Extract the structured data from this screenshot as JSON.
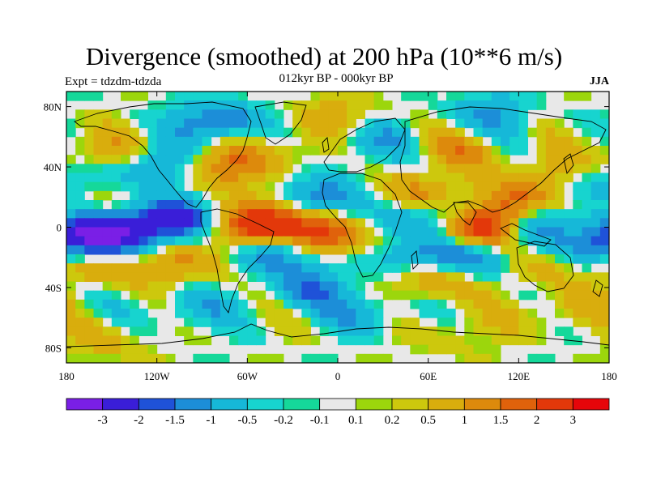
{
  "title": "Divergence (smoothed) at 200 hPa (10**6 m/s)",
  "subtitle": "012kyr BP - 000kyr BP",
  "left_label": "Expt = tdzdm-tdzda",
  "right_label": "JJA",
  "map": {
    "projection": "cylindrical-equidistant",
    "lon_range": [
      -180,
      180
    ],
    "lat_range": [
      -90,
      90
    ],
    "lat_ticks": [
      {
        "label": "80N",
        "lat": 80
      },
      {
        "label": "40N",
        "lat": 40
      },
      {
        "label": "0",
        "lat": 0
      },
      {
        "label": "40S",
        "lat": -40
      },
      {
        "label": "80S",
        "lat": -80
      }
    ],
    "lon_ticks": [
      {
        "label": "180",
        "lon": -180
      },
      {
        "label": "120W",
        "lon": -120
      },
      {
        "label": "60W",
        "lon": -60
      },
      {
        "label": "0",
        "lon": 0
      },
      {
        "label": "60E",
        "lon": 60
      },
      {
        "label": "120E",
        "lon": 120
      },
      {
        "label": "180",
        "lon": 180
      }
    ]
  },
  "colorbar": {
    "colors": [
      "#7a1fe6",
      "#3a1ed8",
      "#1f52d8",
      "#1c8ed8",
      "#16b8d8",
      "#17d4cf",
      "#15d89a",
      "#e8e8e8",
      "#9cd60c",
      "#cdc80d",
      "#d9ad0d",
      "#dd8a0c",
      "#e0620b",
      "#e3380a",
      "#e6050a"
    ],
    "labels": [
      "-3",
      "-2",
      "-1.5",
      "-1",
      "-0.5",
      "-0.2",
      "-0.1",
      "0.1",
      "0.2",
      "0.5",
      "1",
      "1.5",
      "2",
      "3"
    ]
  },
  "field_anomalies": [
    {
      "lon": -170,
      "lat": -5,
      "v": -2.2
    },
    {
      "lon": -140,
      "lat": -2,
      "v": -2.4
    },
    {
      "lon": -110,
      "lat": 5,
      "v": -2.0
    },
    {
      "lon": -100,
      "lat": -25,
      "v": 1.0
    },
    {
      "lon": -160,
      "lat": -25,
      "v": 1.2
    },
    {
      "lon": -165,
      "lat": 10,
      "v": 0.8
    },
    {
      "lon": -70,
      "lat": -5,
      "v": 1.2
    },
    {
      "lon": -40,
      "lat": 5,
      "v": 2.3
    },
    {
      "lon": -10,
      "lat": -5,
      "v": 2.8
    },
    {
      "lon": -40,
      "lat": -15,
      "v": -2.0
    },
    {
      "lon": -10,
      "lat": 20,
      "v": -1.5
    },
    {
      "lon": 20,
      "lat": 5,
      "v": -1.2
    },
    {
      "lon": 50,
      "lat": 20,
      "v": 1.5
    },
    {
      "lon": 80,
      "lat": 10,
      "v": -1.6
    },
    {
      "lon": 95,
      "lat": 0,
      "v": 2.5
    },
    {
      "lon": 115,
      "lat": 15,
      "v": 2.2
    },
    {
      "lon": 135,
      "lat": 5,
      "v": -1.5
    },
    {
      "lon": 90,
      "lat": -20,
      "v": -1.8
    },
    {
      "lon": 60,
      "lat": -35,
      "v": 1.3
    },
    {
      "lon": 40,
      "lat": -20,
      "v": -1.0
    },
    {
      "lon": 130,
      "lat": -25,
      "v": 0.9
    },
    {
      "lon": -120,
      "lat": 40,
      "v": -1.4
    },
    {
      "lon": -80,
      "lat": 40,
      "v": 1.6
    },
    {
      "lon": -30,
      "lat": 50,
      "v": 0.8
    },
    {
      "lon": 20,
      "lat": 55,
      "v": -1.0
    },
    {
      "lon": 80,
      "lat": 50,
      "v": 1.0
    },
    {
      "lon": 140,
      "lat": 35,
      "v": 0.9
    },
    {
      "lon": -160,
      "lat": 50,
      "v": 1.0
    },
    {
      "lon": -80,
      "lat": 70,
      "v": -1.6
    },
    {
      "lon": 0,
      "lat": 75,
      "v": 0.7
    },
    {
      "lon": 100,
      "lat": 75,
      "v": -1.0
    },
    {
      "lon": -100,
      "lat": -55,
      "v": -0.8
    },
    {
      "lon": 20,
      "lat": -55,
      "v": -0.9
    },
    {
      "lon": 150,
      "lat": -55,
      "v": 0.7
    },
    {
      "lon": -150,
      "lat": -75,
      "v": 0.6
    },
    {
      "lon": 80,
      "lat": -70,
      "v": 0.5
    },
    {
      "lon": -20,
      "lat": -40,
      "v": -1.2
    },
    {
      "lon": 170,
      "lat": -15,
      "v": -1.0
    },
    {
      "lon": 170,
      "lat": 30,
      "v": -0.9
    }
  ]
}
